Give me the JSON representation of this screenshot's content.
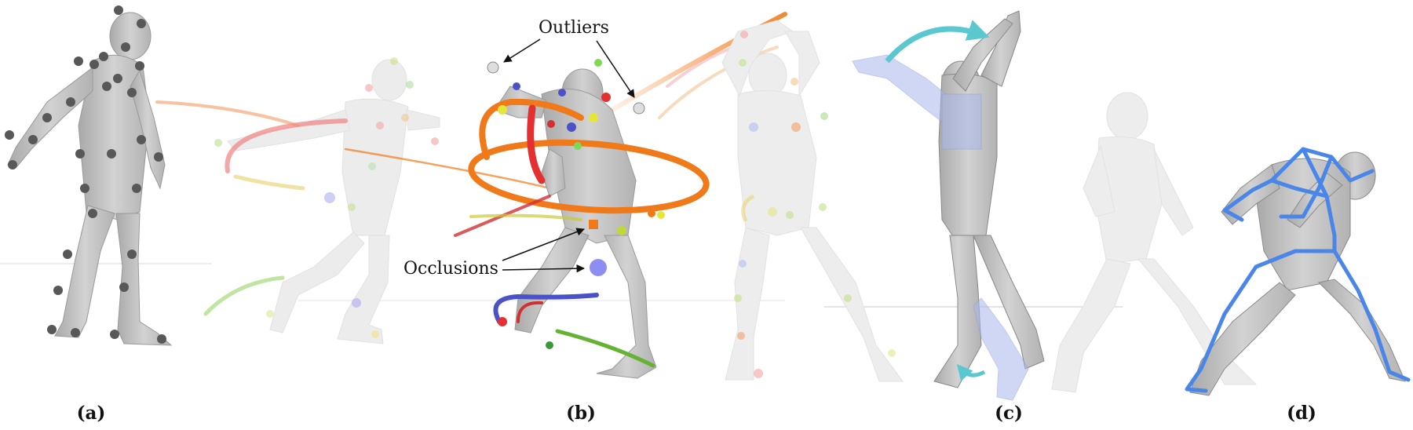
{
  "figure": {
    "panel_labels": [
      "(a)",
      "(b)",
      "(c)",
      "(d)"
    ],
    "annotations": {
      "outliers": "Outliers",
      "occlusions": "Occlusions"
    },
    "colors": {
      "figure_body": "#c9c9c9",
      "figure_body_faded": "#ececec",
      "marker_dark": "#585858",
      "trail_orange": "#f07a1a",
      "trail_red": "#e43030",
      "trail_green": "#66b233",
      "trail_blue": "#4b52c8",
      "rotation_arrow": "#5bc8d0",
      "overlay_limb": "#aab8ee",
      "skeleton": "#4a86e8"
    }
  }
}
